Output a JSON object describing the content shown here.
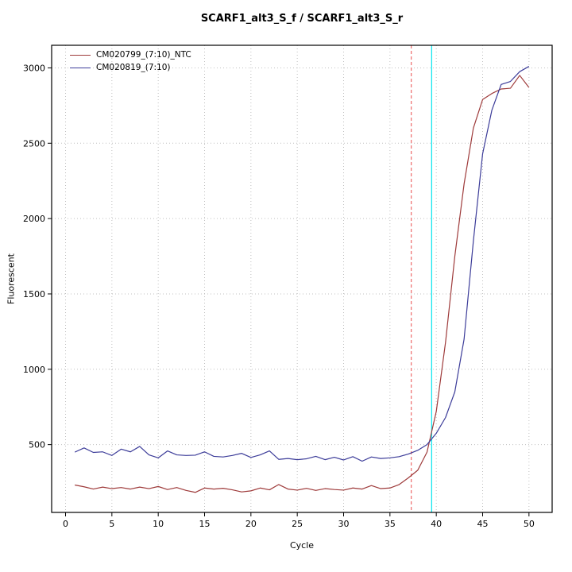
{
  "chart_data": {
    "type": "line",
    "title": "SCARF1_alt3_S_f / SCARF1_alt3_S_r",
    "xlabel": "Cycle",
    "ylabel": "Fluorescent",
    "xlim": [
      -1.5,
      52.5
    ],
    "ylim": [
      50,
      3150
    ],
    "x_ticks": [
      0,
      5,
      10,
      15,
      20,
      25,
      30,
      35,
      40,
      45,
      50
    ],
    "y_ticks": [
      500,
      1000,
      1500,
      2000,
      2500,
      3000
    ],
    "grid": "dotted",
    "colors": {
      "grid": "#c0c0c0",
      "box": "#000000",
      "threshold_line": "#00e5ee",
      "baseline_line": "#ee6a6a"
    },
    "x": [
      1,
      2,
      3,
      4,
      5,
      6,
      7,
      8,
      9,
      10,
      11,
      12,
      13,
      14,
      15,
      16,
      17,
      18,
      19,
      20,
      21,
      22,
      23,
      24,
      25,
      26,
      27,
      28,
      29,
      30,
      31,
      32,
      33,
      34,
      35,
      36,
      37,
      38,
      39,
      40,
      41,
      42,
      43,
      44,
      45,
      46,
      47,
      48,
      49,
      50
    ],
    "series": [
      {
        "name": "CM020799_(7:10)_NTC",
        "color": "#9e3a3a",
        "values": [
          232,
          220,
          205,
          218,
          208,
          215,
          205,
          218,
          208,
          222,
          202,
          215,
          196,
          183,
          212,
          205,
          210,
          200,
          186,
          193,
          212,
          200,
          235,
          205,
          198,
          210,
          196,
          208,
          202,
          198,
          212,
          205,
          228,
          208,
          212,
          235,
          280,
          330,
          450,
          720,
          1180,
          1750,
          2230,
          2600,
          2790,
          2830,
          2860,
          2865,
          2950,
          2870
        ]
      },
      {
        "name": "CM020819_(7:10)",
        "color": "#3c3c99",
        "values": [
          450,
          478,
          448,
          452,
          428,
          470,
          452,
          488,
          432,
          412,
          458,
          432,
          428,
          430,
          452,
          422,
          418,
          428,
          442,
          415,
          432,
          458,
          402,
          408,
          400,
          406,
          422,
          400,
          416,
          398,
          420,
          390,
          418,
          408,
          412,
          420,
          438,
          462,
          500,
          575,
          680,
          850,
          1200,
          1850,
          2430,
          2720,
          2890,
          2910,
          2975,
          3010
        ]
      }
    ],
    "vlines": [
      {
        "x": 37.3,
        "style": "dashed",
        "color": "#ee6a6a"
      },
      {
        "x": 39.5,
        "style": "solid",
        "color": "#00e5ee"
      }
    ],
    "legend": {
      "position": "top-left"
    }
  }
}
